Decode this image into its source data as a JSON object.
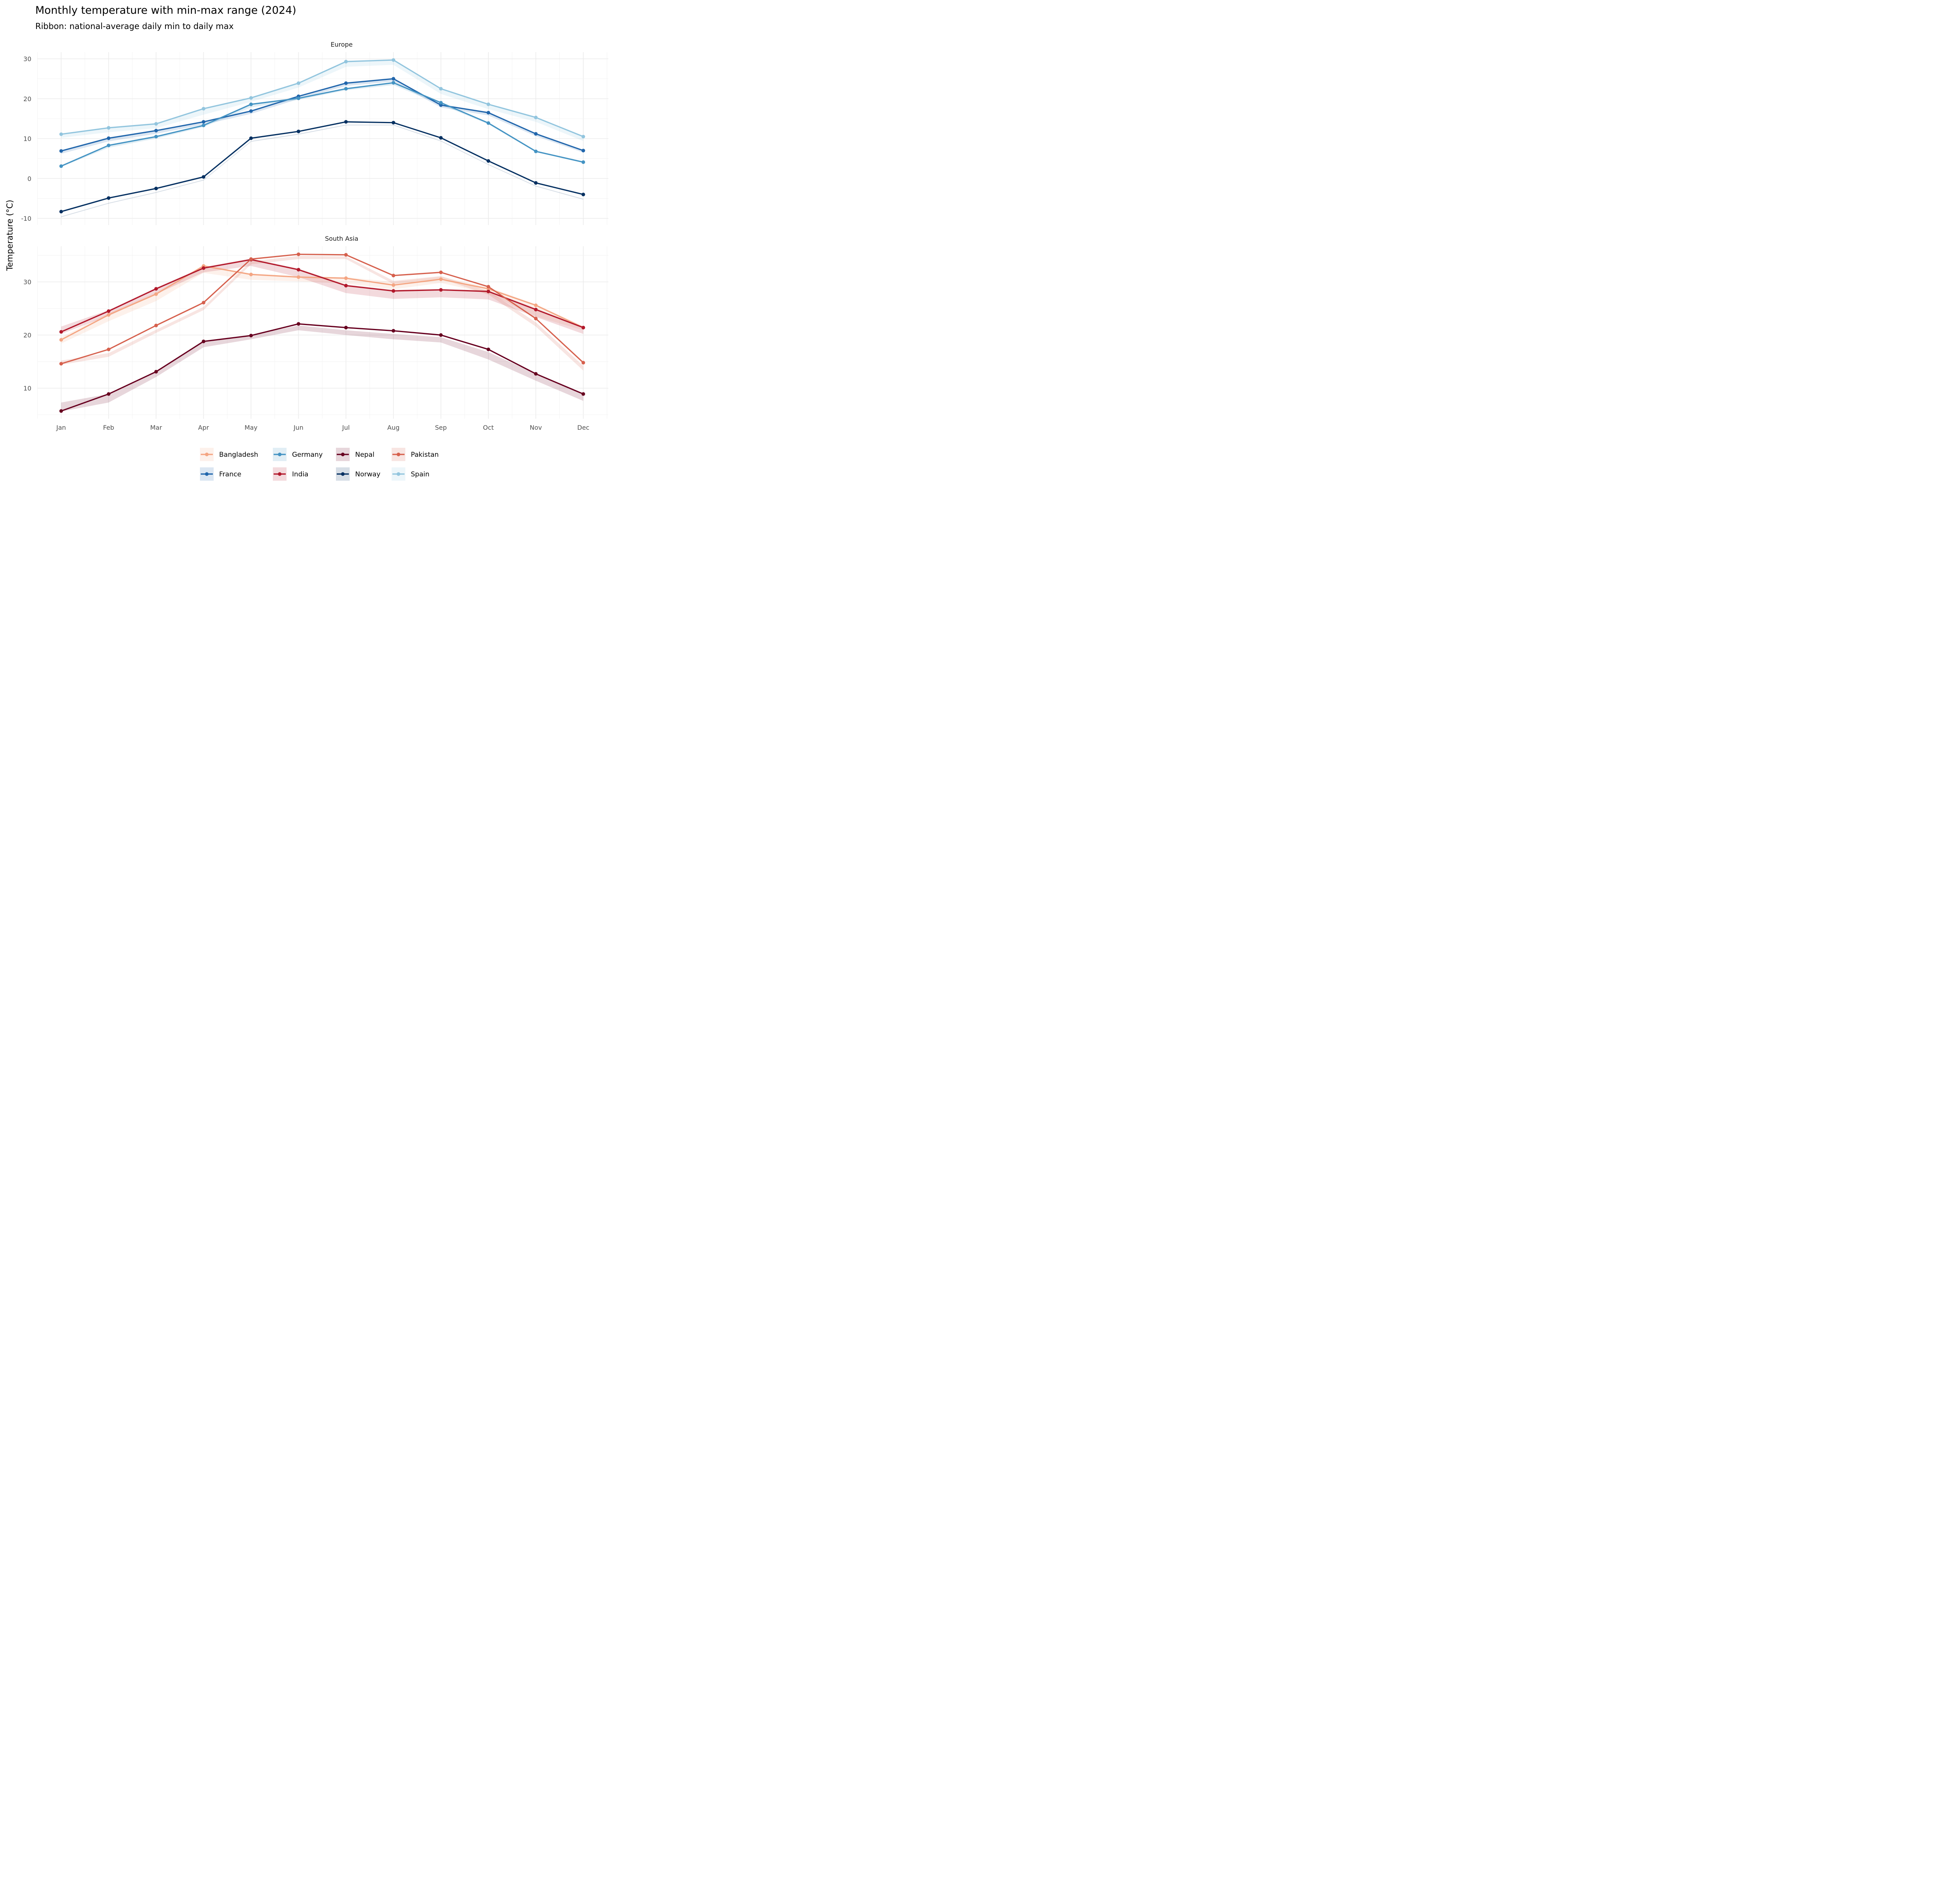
{
  "chart_data": {
    "type": "line",
    "title": "Monthly temperature with min-max range (2024)",
    "subtitle": "Ribbon: national-average daily min to daily max",
    "ylabel": "Temperature (°C)",
    "xlabel": "",
    "categories": [
      "Jan",
      "Feb",
      "Mar",
      "Apr",
      "May",
      "Jun",
      "Jul",
      "Aug",
      "Sep",
      "Oct",
      "Nov",
      "Dec"
    ],
    "legend": {
      "position": "bottom",
      "entries": [
        "Bangladesh",
        "Germany",
        "Nepal",
        "Pakistan",
        "France",
        "India",
        "Norway",
        "Spain"
      ]
    },
    "grid": true,
    "panels": [
      {
        "name": "Europe",
        "ylim": [
          -11.5,
          31.5
        ],
        "yticks": [
          -10,
          0,
          10,
          20,
          30
        ],
        "series": [
          {
            "name": "Spain",
            "color": "#92C5DE",
            "values": [
              11.1,
              12.7,
              13.7,
              17.5,
              20.2,
              23.9,
              29.3,
              29.7,
              22.5,
              18.6,
              15.3,
              10.5
            ],
            "min": [
              10.2,
              11.6,
              12.6,
              16.0,
              19.2,
              22.8,
              28.0,
              28.5,
              21.2,
              17.4,
              14.2,
              9.4
            ],
            "max": [
              11.3,
              12.9,
              13.9,
              17.7,
              20.4,
              24.1,
              29.5,
              29.9,
              22.7,
              18.8,
              15.5,
              10.7
            ]
          },
          {
            "name": "France",
            "color": "#2166AC",
            "values": [
              6.9,
              10.1,
              12.0,
              14.2,
              16.9,
              20.6,
              23.9,
              25.0,
              18.4,
              16.5,
              11.2,
              7.0
            ],
            "min": [
              6.2,
              9.3,
              11.2,
              13.5,
              16.2,
              19.9,
              23.2,
              24.3,
              17.8,
              15.8,
              10.6,
              6.5
            ],
            "max": [
              7.1,
              10.3,
              12.2,
              14.4,
              17.1,
              20.8,
              24.1,
              25.2,
              18.6,
              16.7,
              11.4,
              7.2
            ]
          },
          {
            "name": "Germany",
            "color": "#4393C3",
            "values": [
              3.1,
              8.3,
              10.5,
              13.3,
              18.6,
              20.1,
              22.5,
              24.0,
              19.0,
              13.9,
              6.8,
              4.1
            ],
            "min": [
              2.9,
              7.7,
              10.0,
              12.9,
              17.8,
              19.7,
              22.1,
              23.4,
              18.5,
              13.6,
              6.6,
              3.9
            ],
            "max": [
              3.3,
              8.5,
              10.7,
              13.5,
              18.8,
              20.3,
              22.7,
              24.2,
              19.2,
              14.1,
              7.0,
              4.3
            ]
          },
          {
            "name": "Norway",
            "color": "#053061",
            "values": [
              -8.3,
              -4.9,
              -2.5,
              0.4,
              10.1,
              11.8,
              14.2,
              14.0,
              10.2,
              4.4,
              -1.1,
              -4.0
            ],
            "min": [
              -9.7,
              -6.3,
              -3.6,
              -0.5,
              9.2,
              11.0,
              13.3,
              13.3,
              9.3,
              3.4,
              -2.0,
              -5.3
            ],
            "max": [
              -9.5,
              -6.1,
              -3.4,
              -0.3,
              9.4,
              11.2,
              13.5,
              13.5,
              9.5,
              3.6,
              -1.8,
              -5.1
            ]
          }
        ]
      },
      {
        "name": "South Asia",
        "ylim": [
          4.6,
          37.0
        ],
        "yticks": [
          10,
          20,
          30
        ],
        "series": [
          {
            "name": "Bangladesh",
            "color": "#F4A582",
            "values": [
              19.1,
              23.8,
              27.7,
              33.0,
              31.4,
              30.9,
              30.7,
              29.4,
              30.5,
              28.7,
              25.6,
              21.4
            ],
            "min": [
              18.4,
              22.6,
              26.4,
              31.7,
              30.4,
              30.1,
              29.7,
              28.6,
              29.8,
              27.8,
              23.5,
              20.9
            ],
            "max": [
              19.6,
              24.1,
              28.0,
              33.2,
              31.6,
              31.1,
              30.9,
              30.0,
              31.0,
              29.0,
              25.8,
              21.7
            ]
          },
          {
            "name": "India",
            "color": "#B2182B",
            "values": [
              20.6,
              24.5,
              28.7,
              32.6,
              34.2,
              32.3,
              29.3,
              28.3,
              28.5,
              28.2,
              24.8,
              21.4
            ],
            "min": [
              20.2,
              23.6,
              27.7,
              31.8,
              33.0,
              30.9,
              27.9,
              26.8,
              27.1,
              26.7,
              23.4,
              20.2
            ],
            "max": [
              21.6,
              24.7,
              28.9,
              32.8,
              34.4,
              32.5,
              29.5,
              28.5,
              28.7,
              28.4,
              25.0,
              21.6
            ]
          },
          {
            "name": "Pakistan",
            "color": "#D6604D",
            "values": [
              14.6,
              17.3,
              21.8,
              26.1,
              34.3,
              35.2,
              35.1,
              31.2,
              31.8,
              29.1,
              23.1,
              14.8
            ],
            "min": [
              14.4,
              15.9,
              20.4,
              24.7,
              33.3,
              34.3,
              34.3,
              29.6,
              30.6,
              27.6,
              21.6,
              13.3
            ],
            "max": [
              15.2,
              16.6,
              21.0,
              25.3,
              33.9,
              34.9,
              34.8,
              30.2,
              31.1,
              28.3,
              22.4,
              14.2
            ]
          },
          {
            "name": "Nepal",
            "color": "#67001F",
            "values": [
              5.7,
              8.9,
              13.1,
              18.8,
              19.9,
              22.1,
              21.4,
              20.8,
              20.0,
              17.3,
              12.7,
              8.9
            ],
            "min": [
              5.6,
              7.3,
              12.1,
              17.7,
              19.2,
              20.9,
              20.0,
              19.2,
              18.6,
              15.4,
              11.4,
              7.6
            ],
            "max": [
              7.3,
              8.9,
              13.1,
              18.8,
              20.0,
              21.8,
              20.9,
              20.2,
              19.6,
              16.8,
              12.7,
              8.9
            ]
          }
        ]
      }
    ]
  }
}
